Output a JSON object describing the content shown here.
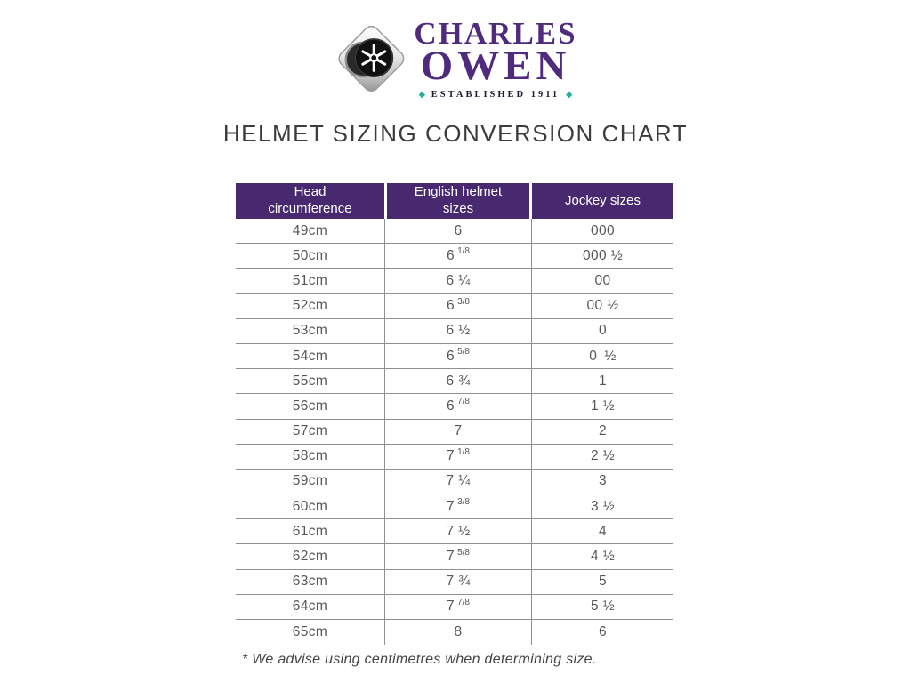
{
  "logo": {
    "line1": "CHARLES",
    "line2": "OWEN",
    "established": "ESTABLISHED 1911",
    "bullet": "◆",
    "colors": {
      "purple": "#4f2b7e",
      "teal": "#2baa9f"
    }
  },
  "title": "HELMET SIZING CONVERSION CHART",
  "table": {
    "headers": [
      "Head circumference",
      "English helmet sizes",
      "Jockey sizes"
    ],
    "header_bg": "#48286e",
    "rows": [
      {
        "head": "49cm",
        "english": "6",
        "english_sup": "",
        "jockey": "000"
      },
      {
        "head": "50cm",
        "english": "6",
        "english_sup": "1/8",
        "jockey": "000 ½"
      },
      {
        "head": "51cm",
        "english": "6 ¼",
        "english_sup": "",
        "jockey": "00"
      },
      {
        "head": "52cm",
        "english": "6",
        "english_sup": "3/8",
        "jockey": "00 ½"
      },
      {
        "head": "53cm",
        "english": "6 ½",
        "english_sup": "",
        "jockey": "0"
      },
      {
        "head": "54cm",
        "english": "6",
        "english_sup": "5/8",
        "jockey": "0 ½"
      },
      {
        "head": "55cm",
        "english": "6 ¾",
        "english_sup": "",
        "jockey": "1"
      },
      {
        "head": "56cm",
        "english": "6",
        "english_sup": "7/8",
        "jockey": "1 ½"
      },
      {
        "head": "57cm",
        "english": "7",
        "english_sup": "",
        "jockey": "2"
      },
      {
        "head": "58cm",
        "english": "7",
        "english_sup": "1/8",
        "jockey": "2 ½"
      },
      {
        "head": "59cm",
        "english": "7 ¼",
        "english_sup": "",
        "jockey": "3"
      },
      {
        "head": "60cm",
        "english": "7",
        "english_sup": "3/8",
        "jockey": "3 ½"
      },
      {
        "head": "61cm",
        "english": "7 ½",
        "english_sup": "",
        "jockey": "4"
      },
      {
        "head": "62cm",
        "english": "7",
        "english_sup": "5/8",
        "jockey": "4 ½"
      },
      {
        "head": "63cm",
        "english": "7 ¾",
        "english_sup": "",
        "jockey": "5"
      },
      {
        "head": "64cm",
        "english": "7",
        "english_sup": "7/8",
        "jockey": "5 ½"
      },
      {
        "head": "65cm",
        "english": "8",
        "english_sup": "",
        "jockey": "6"
      }
    ]
  },
  "footnote": "* We advise using centimetres when determining size."
}
